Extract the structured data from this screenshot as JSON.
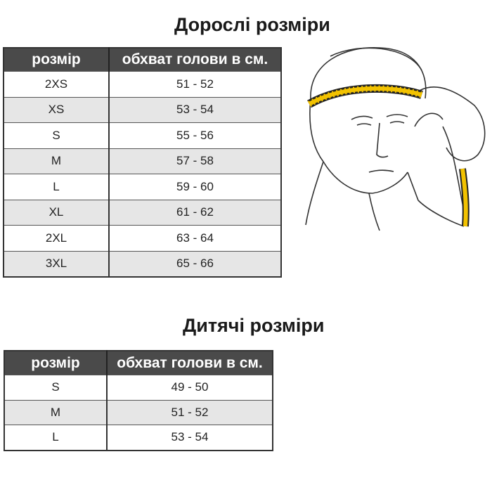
{
  "adult": {
    "title": "Дорослі розміри",
    "headers": [
      "розмір",
      "обхват голови в см."
    ],
    "rows": [
      [
        "2XS",
        "51 - 52"
      ],
      [
        "XS",
        "53 - 54"
      ],
      [
        "S",
        "55 - 56"
      ],
      [
        "M",
        "57 - 58"
      ],
      [
        "L",
        "59 - 60"
      ],
      [
        "XL",
        "61 - 62"
      ],
      [
        "2XL",
        "63 - 64"
      ],
      [
        "3XL",
        "65 - 66"
      ]
    ]
  },
  "kids": {
    "title": "Дитячі розміри",
    "headers": [
      "розмір",
      "обхват голови в см."
    ],
    "rows": [
      [
        "S",
        "49 - 50"
      ],
      [
        "M",
        "51 - 52"
      ],
      [
        "L",
        "53 - 54"
      ]
    ]
  },
  "illustration": {
    "icon": "head-measuring-tape-illustration",
    "tape_color": "#f2c200"
  }
}
